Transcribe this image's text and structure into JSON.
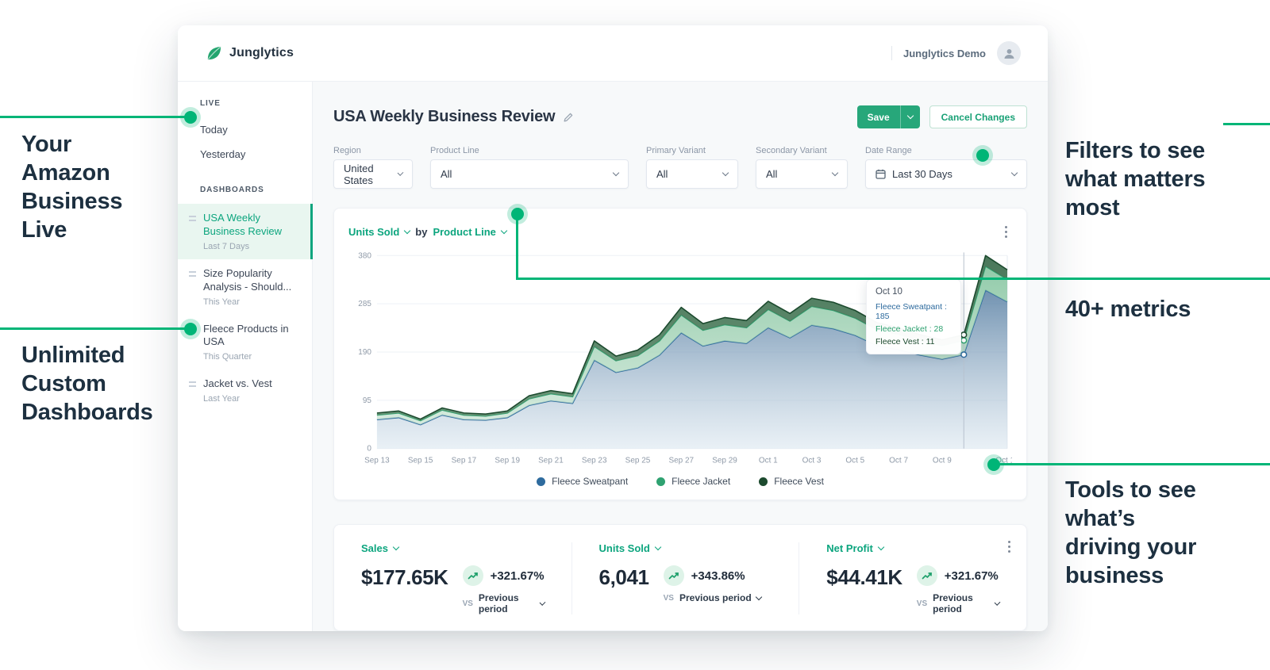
{
  "header": {
    "brand": "Junglytics",
    "account": "Junglytics Demo"
  },
  "sidebar": {
    "live_header": "LIVE",
    "live_items": [
      {
        "label": "Today"
      },
      {
        "label": "Yesterday"
      }
    ],
    "dashboards_header": "DASHBOARDS",
    "dashboards": [
      {
        "title": "USA Weekly Business Review",
        "subtitle": "Last 7 Days"
      },
      {
        "title": "Size Popularity Analysis - Should...",
        "subtitle": "This Year"
      },
      {
        "title": "Fleece Products in USA",
        "subtitle": "This Quarter"
      },
      {
        "title": "Jacket vs. Vest",
        "subtitle": "Last Year"
      }
    ]
  },
  "page": {
    "title": "USA Weekly Business Review",
    "save_label": "Save",
    "cancel_label": "Cancel Changes"
  },
  "filters": [
    {
      "label": "Region",
      "value": "United States"
    },
    {
      "label": "Product Line",
      "value": "All"
    },
    {
      "label": "Primary Variant",
      "value": "All"
    },
    {
      "label": "Secondary Variant",
      "value": "All"
    },
    {
      "label": "Date Range",
      "value": "Last 30 Days"
    }
  ],
  "chart_header": {
    "metric": "Units Sold",
    "by_label": "by",
    "dimension": "Product Line"
  },
  "chart_data": {
    "type": "area",
    "stacked": true,
    "x": [
      "Sep 13",
      "Sep 14",
      "Sep 15",
      "Sep 16",
      "Sep 17",
      "Sep 18",
      "Sep 19",
      "Sep 20",
      "Sep 21",
      "Sep 22",
      "Sep 23",
      "Sep 24",
      "Sep 25",
      "Sep 26",
      "Sep 27",
      "Sep 28",
      "Sep 29",
      "Sep 30",
      "Oct 1",
      "Oct 2",
      "Oct 3",
      "Oct 4",
      "Oct 5",
      "Oct 6",
      "Oct 7",
      "Oct 8",
      "Oct 9",
      "Oct 10",
      "Oct 11",
      "Oct 12"
    ],
    "xtick_indices": [
      0,
      2,
      4,
      6,
      8,
      10,
      12,
      14,
      16,
      18,
      20,
      22,
      24,
      26,
      29
    ],
    "series": [
      {
        "name": "Fleece Sweatpant",
        "color": "#2e6b9e",
        "fill_from": "rgba(88,127,163,0.85)",
        "fill_to": "rgba(215,228,238,0.55)",
        "values": [
          57,
          61,
          47,
          66,
          57,
          56,
          61,
          85,
          94,
          89,
          174,
          150,
          159,
          184,
          228,
          202,
          212,
          207,
          238,
          218,
          243,
          236,
          223,
          203,
          195,
          184,
          176,
          185,
          312,
          289
        ]
      },
      {
        "name": "Fleece Jacket",
        "color": "#2fa271",
        "fill_from": "rgba(136,198,162,0.92)",
        "fill_to": "rgba(196,226,207,0.7)",
        "values": [
          9,
          9,
          8,
          10,
          9,
          8,
          9,
          13,
          14,
          13,
          27,
          23,
          24,
          28,
          35,
          31,
          32,
          31,
          36,
          33,
          37,
          36,
          34,
          31,
          30,
          28,
          27,
          28,
          47,
          44
        ]
      },
      {
        "name": "Fleece Vest",
        "color": "#1c4a2e",
        "fill_from": "rgba(64,112,81,0.95)",
        "fill_to": "rgba(96,142,110,0.9)",
        "values": [
          4,
          4,
          3,
          4,
          4,
          4,
          4,
          6,
          6,
          6,
          11,
          9,
          11,
          12,
          15,
          13,
          14,
          14,
          16,
          15,
          16,
          16,
          15,
          14,
          13,
          12,
          11,
          11,
          21,
          19
        ]
      }
    ],
    "ylim": [
      0,
      380
    ],
    "yticks": [
      0,
      95,
      190,
      285,
      380
    ],
    "crosshair_index": 27,
    "tooltip": {
      "title": "Oct 10",
      "lines": [
        {
          "text": "Fleece Sweatpant : 185"
        },
        {
          "text": "Fleece Jacket : 28"
        },
        {
          "text": "Fleece Vest : 11"
        }
      ]
    }
  },
  "metrics": [
    {
      "name": "Sales",
      "value": "$177.65K",
      "change": "+321.67%",
      "vs_label": "VS",
      "period": "Previous period"
    },
    {
      "name": "Units Sold",
      "value": "6,041",
      "change": "+343.86%",
      "vs_label": "VS",
      "period": "Previous period"
    },
    {
      "name": "Net Profit",
      "value": "$44.41K",
      "change": "+321.67%",
      "vs_label": "VS",
      "period": "Previous period"
    }
  ],
  "annotations": {
    "left_top": "Your\nAmazon\nBusiness\nLive",
    "left_bottom": "Unlimited\nCustom\nDashboards",
    "right_top": "Filters to see\nwhat matters\nmost",
    "right_mid": "40+ metrics",
    "right_bottom": "Tools to see\nwhat’s\ndriving your\nbusiness"
  },
  "colors": {
    "accent": "#0ca57e",
    "annotation_green": "#00b577"
  }
}
